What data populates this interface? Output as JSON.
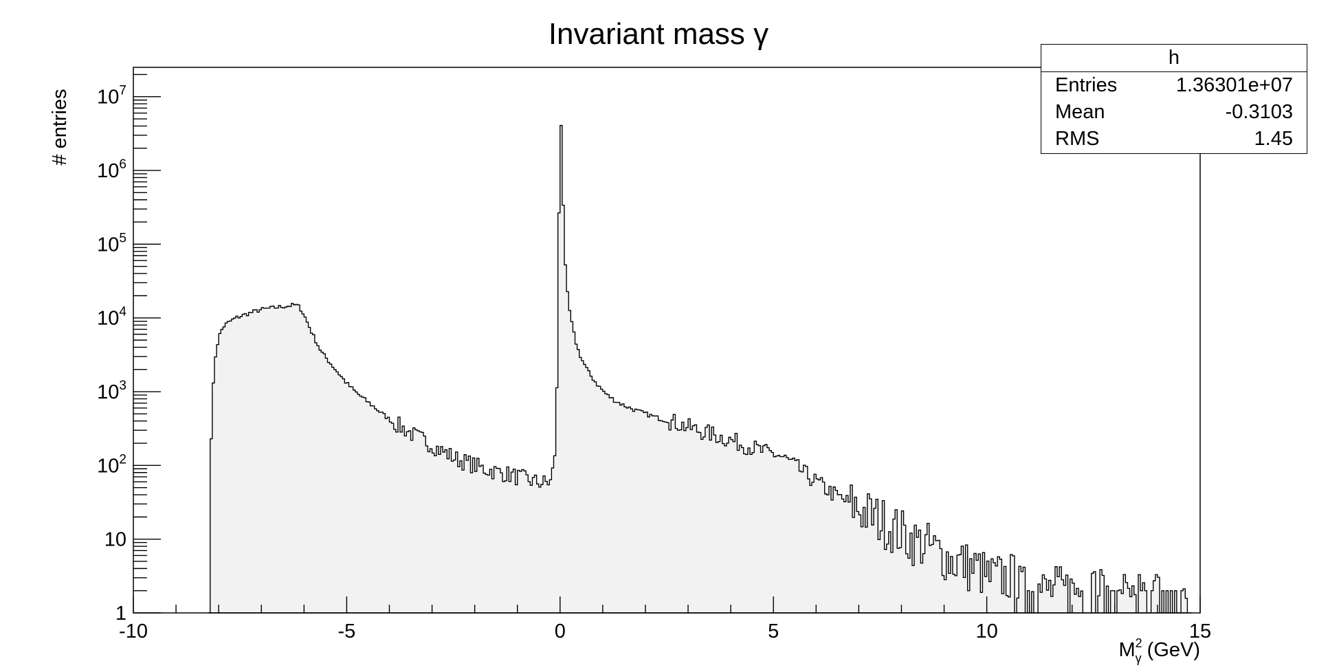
{
  "chart_data": {
    "type": "bar",
    "title": "Invariant mass γ",
    "xlabel": "M",
    "xlabel_sup": "2",
    "xlabel_sub": "γ",
    "xlabel_unit": "(GeV)",
    "ylabel": "# entries",
    "xlim": [
      -10,
      15
    ],
    "ylim": [
      1,
      25000000
    ],
    "yscale": "log",
    "grid": false,
    "histogram_fill": "#f2f2f2",
    "x_ticks": [
      "-10",
      "-5",
      "0",
      "5",
      "10",
      "15"
    ],
    "y_ticks": [
      {
        "base": "1",
        "exp": ""
      },
      {
        "base": "10",
        "exp": ""
      },
      {
        "base": "10",
        "exp": "2"
      },
      {
        "base": "10",
        "exp": "3"
      },
      {
        "base": "10",
        "exp": "4"
      },
      {
        "base": "10",
        "exp": "5"
      },
      {
        "base": "10",
        "exp": "6"
      },
      {
        "base": "10",
        "exp": "7"
      }
    ],
    "x": [
      -8.2,
      -8.1,
      -8.0,
      -7.9,
      -7.8,
      -7.6,
      -7.4,
      -7.2,
      -7.0,
      -6.8,
      -6.6,
      -6.4,
      -6.2,
      -6.1,
      -6.0,
      -5.8,
      -5.6,
      -5.4,
      -5.2,
      -5.0,
      -4.8,
      -4.6,
      -4.4,
      -4.2,
      -4.0,
      -3.8,
      -3.6,
      -3.4,
      -3.2,
      -3.0,
      -2.8,
      -2.6,
      -2.4,
      -2.2,
      -2.0,
      -1.8,
      -1.6,
      -1.4,
      -1.2,
      -1.0,
      -0.8,
      -0.6,
      -0.4,
      -0.2,
      -0.1,
      -0.05,
      0.0,
      0.05,
      0.1,
      0.15,
      0.2,
      0.3,
      0.4,
      0.5,
      0.7,
      0.9,
      1.1,
      1.3,
      1.5,
      1.8,
      2.1,
      2.4,
      2.7,
      3.0,
      3.3,
      3.6,
      3.9,
      4.2,
      4.5,
      4.8,
      5.1,
      5.4,
      5.7,
      6.0,
      6.3,
      6.6,
      6.9,
      7.2,
      7.5,
      7.8,
      8.0,
      8.2,
      8.4,
      8.6,
      8.8,
      9.0,
      9.2,
      9.4,
      9.6,
      9.8,
      10.0,
      10.2,
      10.4,
      10.6,
      10.8,
      11.0,
      11.2,
      11.4,
      11.6,
      11.8,
      12.0,
      12.2,
      12.4,
      12.6,
      12.8,
      13.0,
      13.2,
      13.4,
      13.6,
      13.8,
      14.0,
      14.2,
      14.4,
      14.7
    ],
    "values": [
      150,
      2500,
      5500,
      7500,
      8500,
      10000,
      11000,
      12000,
      13000,
      13500,
      14000,
      14500,
      15000,
      14000,
      11000,
      6000,
      3500,
      2500,
      1800,
      1300,
      1000,
      800,
      650,
      520,
      420,
      350,
      300,
      250,
      220,
      190,
      160,
      140,
      120,
      110,
      100,
      90,
      85,
      80,
      75,
      70,
      65,
      60,
      58,
      60,
      200,
      6000,
      12000000,
      1500000,
      80000,
      30000,
      15000,
      7000,
      4000,
      2800,
      1700,
      1200,
      900,
      750,
      650,
      550,
      480,
      420,
      380,
      330,
      290,
      260,
      230,
      200,
      175,
      150,
      140,
      110,
      80,
      60,
      45,
      35,
      28,
      22,
      18,
      14,
      12,
      10,
      9,
      8,
      7,
      6,
      5,
      5,
      4,
      4,
      3,
      3,
      3,
      3,
      2,
      2,
      2,
      2,
      2,
      2,
      2,
      2,
      2,
      2,
      2,
      1,
      2,
      1,
      2,
      1,
      2,
      1,
      1,
      2
    ],
    "legend": {
      "title": "h",
      "entries": [
        {
          "label": "Entries",
          "value": "1.36301e+07"
        },
        {
          "label": "Mean",
          "value": "-0.3103"
        },
        {
          "label": "RMS",
          "value": "1.45"
        }
      ]
    }
  }
}
